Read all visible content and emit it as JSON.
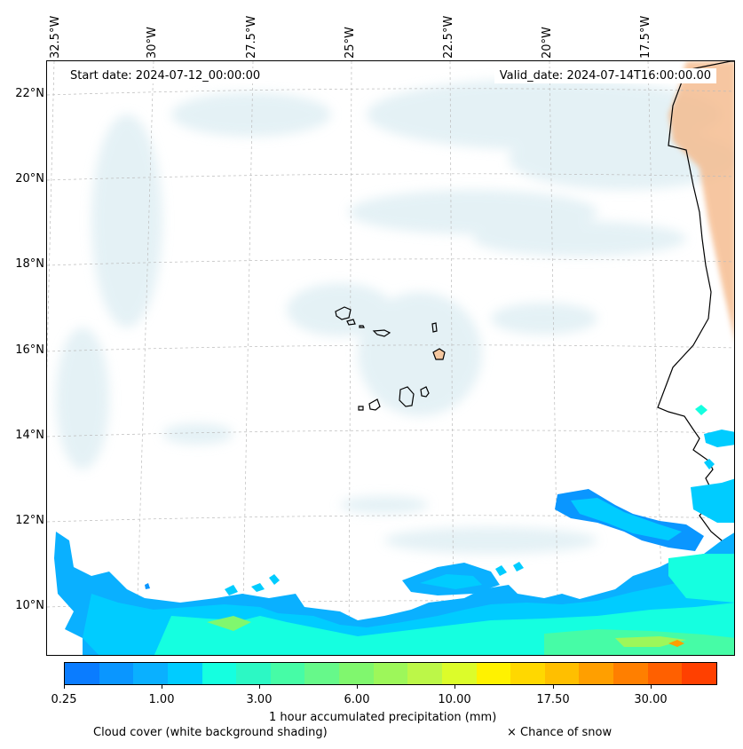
{
  "map": {
    "start_date": "Start date: 2024-07-12_00:00:00",
    "valid_date": "Valid_date: 2024-07-14T16:00:00.00",
    "lon_labels": [
      "32.5°W",
      "30°W",
      "27.5°W",
      "25°W",
      "22.5°W",
      "20°W",
      "17.5°W"
    ],
    "lat_labels": [
      "22°N",
      "20°N",
      "18°N",
      "16°N",
      "14°N",
      "12°N",
      "10°N"
    ],
    "gridlines": true,
    "land_outline_color": "#000000",
    "cloud_color": "#cfe6ee",
    "dust_color": "#f5b98a"
  },
  "colorbar": {
    "label": "1 hour accumulated precipitation (mm)",
    "tick_labels": [
      "0.25",
      "1.00",
      "3.00",
      "6.00",
      "10.00",
      "17.50",
      "30.00"
    ],
    "colors": [
      "#0a7cff",
      "#0a96ff",
      "#0ab0ff",
      "#00ccff",
      "#15ffe0",
      "#2cf8c4",
      "#46fca6",
      "#66f98a",
      "#80f76e",
      "#9df75a",
      "#bcf748",
      "#dcfc2a",
      "#fff200",
      "#ffd800",
      "#ffbf00",
      "#ff9f00",
      "#ff7f00",
      "#ff6000",
      "#ff4000"
    ]
  },
  "captions": {
    "cloud_cover": "Cloud cover (white background shading)",
    "snow": "× Chance of snow"
  }
}
